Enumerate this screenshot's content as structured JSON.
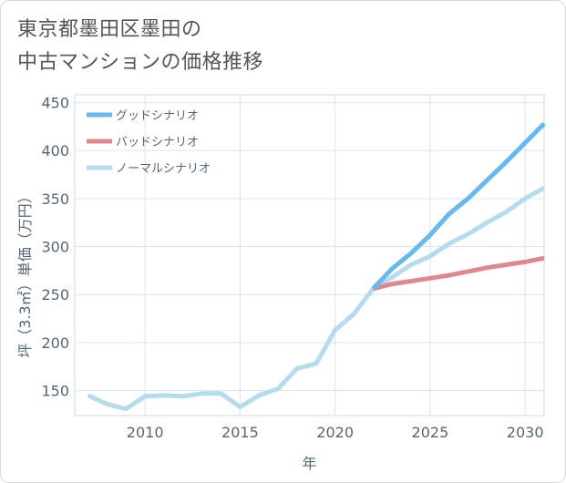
{
  "title": {
    "line1": "東京都墨田区墨田の",
    "line2": "中古マンションの価格推移"
  },
  "chart_data": {
    "type": "line",
    "title": "東京都墨田区墨田の中古マンションの価格推移",
    "xlabel": "年",
    "ylabel": "坪（3.3㎡）単価（万円）",
    "xlim": [
      2006.3,
      2031
    ],
    "ylim": [
      124,
      458
    ],
    "x_ticks": [
      2010,
      2015,
      2020,
      2025,
      2030
    ],
    "y_ticks": [
      150,
      200,
      250,
      300,
      350,
      400,
      450
    ],
    "grid": true,
    "legend_position": "top-left",
    "series": [
      {
        "name": "グッドシナリオ",
        "color": "#6bb8ec",
        "x": [
          2022,
          2023,
          2024,
          2025,
          2026,
          2027,
          2028,
          2029,
          2030,
          2031
        ],
        "values": [
          256,
          277,
          293,
          312,
          334,
          350,
          369,
          388,
          408,
          428
        ]
      },
      {
        "name": "バッドシナリオ",
        "color": "#db8a90",
        "x": [
          2022,
          2023,
          2024,
          2025,
          2026,
          2027,
          2028,
          2029,
          2030,
          2031
        ],
        "values": [
          256,
          261,
          264,
          267,
          270,
          274,
          278,
          281,
          284,
          288
        ]
      },
      {
        "name": "ノーマルシナリオ",
        "color": "#b6dcec",
        "x": [
          2007,
          2008,
          2009,
          2010,
          2011,
          2012,
          2013,
          2014,
          2015,
          2016,
          2017,
          2018,
          2019,
          2020,
          2021,
          2022,
          2023,
          2024,
          2025,
          2026,
          2027,
          2028,
          2029,
          2030,
          2031
        ],
        "values": [
          145,
          136,
          131,
          144,
          145,
          144,
          147,
          147,
          133,
          145,
          152,
          173,
          178,
          213,
          230,
          256,
          268,
          281,
          290,
          303,
          313,
          325,
          336,
          350,
          361
        ]
      }
    ]
  }
}
